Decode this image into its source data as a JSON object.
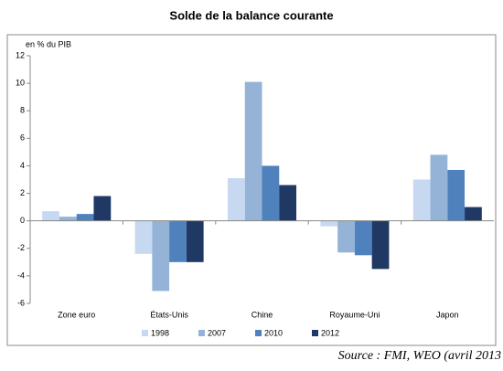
{
  "chart_data": {
    "type": "bar",
    "title": "Solde de la balance courante",
    "y_label": "en % du PIB",
    "categories": [
      "Zone euro",
      "États-Unis",
      "Chine",
      "Royaume-Uni",
      "Japon"
    ],
    "series": [
      {
        "name": "1998",
        "color": "#c6d9f1",
        "values": [
          0.7,
          -2.4,
          3.1,
          -0.4,
          3.0
        ]
      },
      {
        "name": "2007",
        "color": "#95b3d7",
        "values": [
          0.3,
          -5.1,
          10.1,
          -2.3,
          4.8
        ]
      },
      {
        "name": "2010",
        "color": "#4f81bd",
        "values": [
          0.5,
          -3.0,
          4.0,
          -2.5,
          3.7
        ]
      },
      {
        "name": "2012",
        "color": "#1f3864",
        "values": [
          1.8,
          -3.0,
          2.6,
          -3.5,
          1.0
        ]
      }
    ],
    "ylim": [
      -6,
      12
    ],
    "yticks": [
      -6,
      -4,
      -2,
      0,
      2,
      4,
      6,
      8,
      10,
      12
    ],
    "grid": false,
    "legend": "bottom",
    "source": "Source : FMI, WEO (avril 2013"
  }
}
